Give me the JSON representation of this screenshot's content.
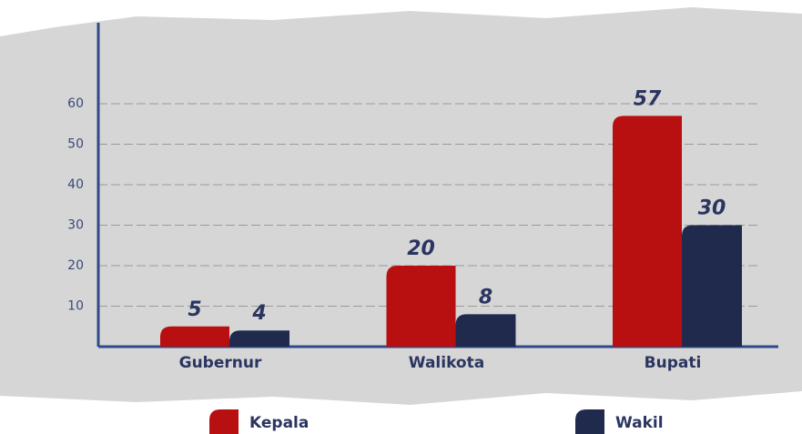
{
  "chart_data": {
    "type": "bar",
    "categories": [
      "Gubernur",
      "Walikota",
      "Bupati"
    ],
    "series": [
      {
        "name": "Kepala",
        "color": "#b80f10",
        "values": [
          5,
          20,
          57
        ]
      },
      {
        "name": "Wakil",
        "color": "#1f2a4d",
        "values": [
          4,
          8,
          30
        ]
      }
    ],
    "ylim": [
      0,
      80
    ],
    "yticks": [
      10,
      20,
      30,
      40,
      50,
      60
    ],
    "grid": true
  }
}
